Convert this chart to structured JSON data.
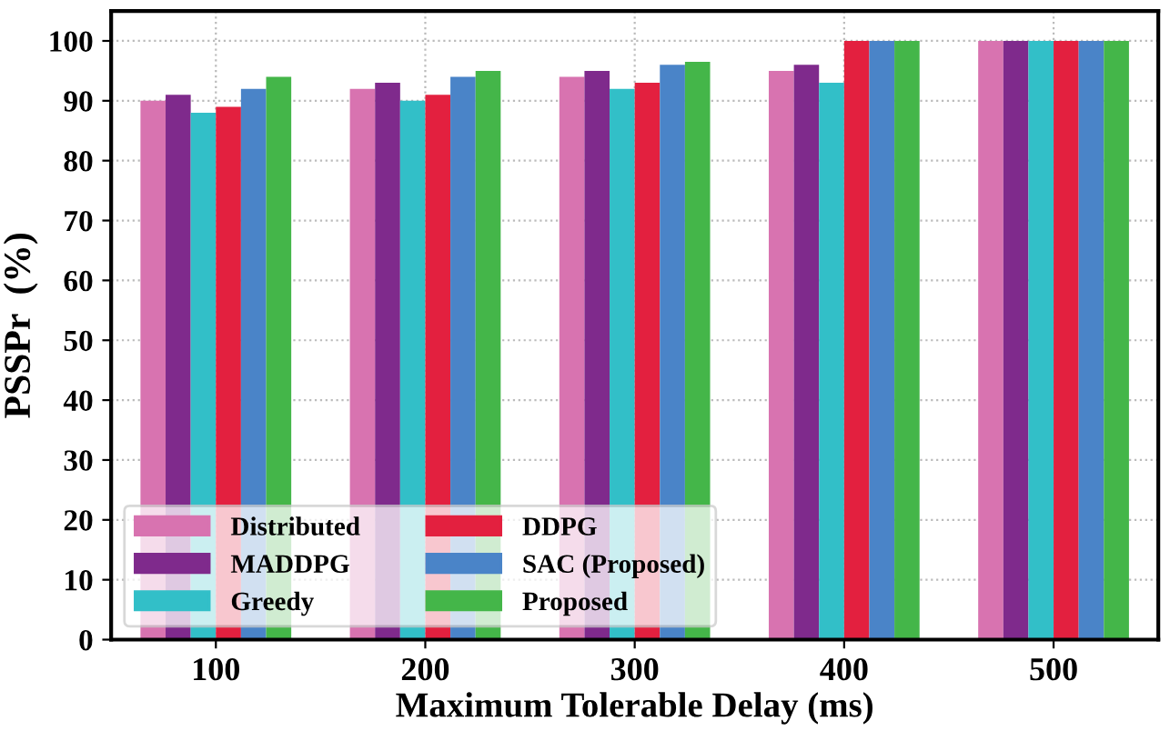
{
  "chart_data": {
    "type": "bar",
    "xlabel": "Maximum Tolerable Delay (ms)",
    "ylabel": "PSSPr  (%)",
    "categories": [
      "100",
      "200",
      "300",
      "400",
      "500"
    ],
    "series": [
      {
        "name": "Distributed",
        "color": "#d873b0",
        "values": [
          90,
          92,
          94,
          95,
          100
        ]
      },
      {
        "name": "MADDPG",
        "color": "#7f2a8c",
        "values": [
          91,
          93,
          95,
          96,
          100
        ]
      },
      {
        "name": "Greedy",
        "color": "#32bfc8",
        "values": [
          88,
          90,
          92,
          93,
          100
        ]
      },
      {
        "name": "DDPG",
        "color": "#e3203f",
        "values": [
          89,
          91,
          93,
          100,
          100
        ]
      },
      {
        "name": "SAC (Proposed)",
        "color": "#4a84c8",
        "values": [
          92,
          94,
          96,
          100,
          100
        ]
      },
      {
        "name": "Proposed",
        "color": "#44b649",
        "values": [
          94,
          95,
          96.5,
          100,
          100
        ]
      }
    ],
    "ylim": [
      0,
      105
    ],
    "yticks": [
      0,
      10,
      20,
      30,
      40,
      50,
      60,
      70,
      80,
      90,
      100
    ],
    "grid": true,
    "legend": "bottom left"
  }
}
